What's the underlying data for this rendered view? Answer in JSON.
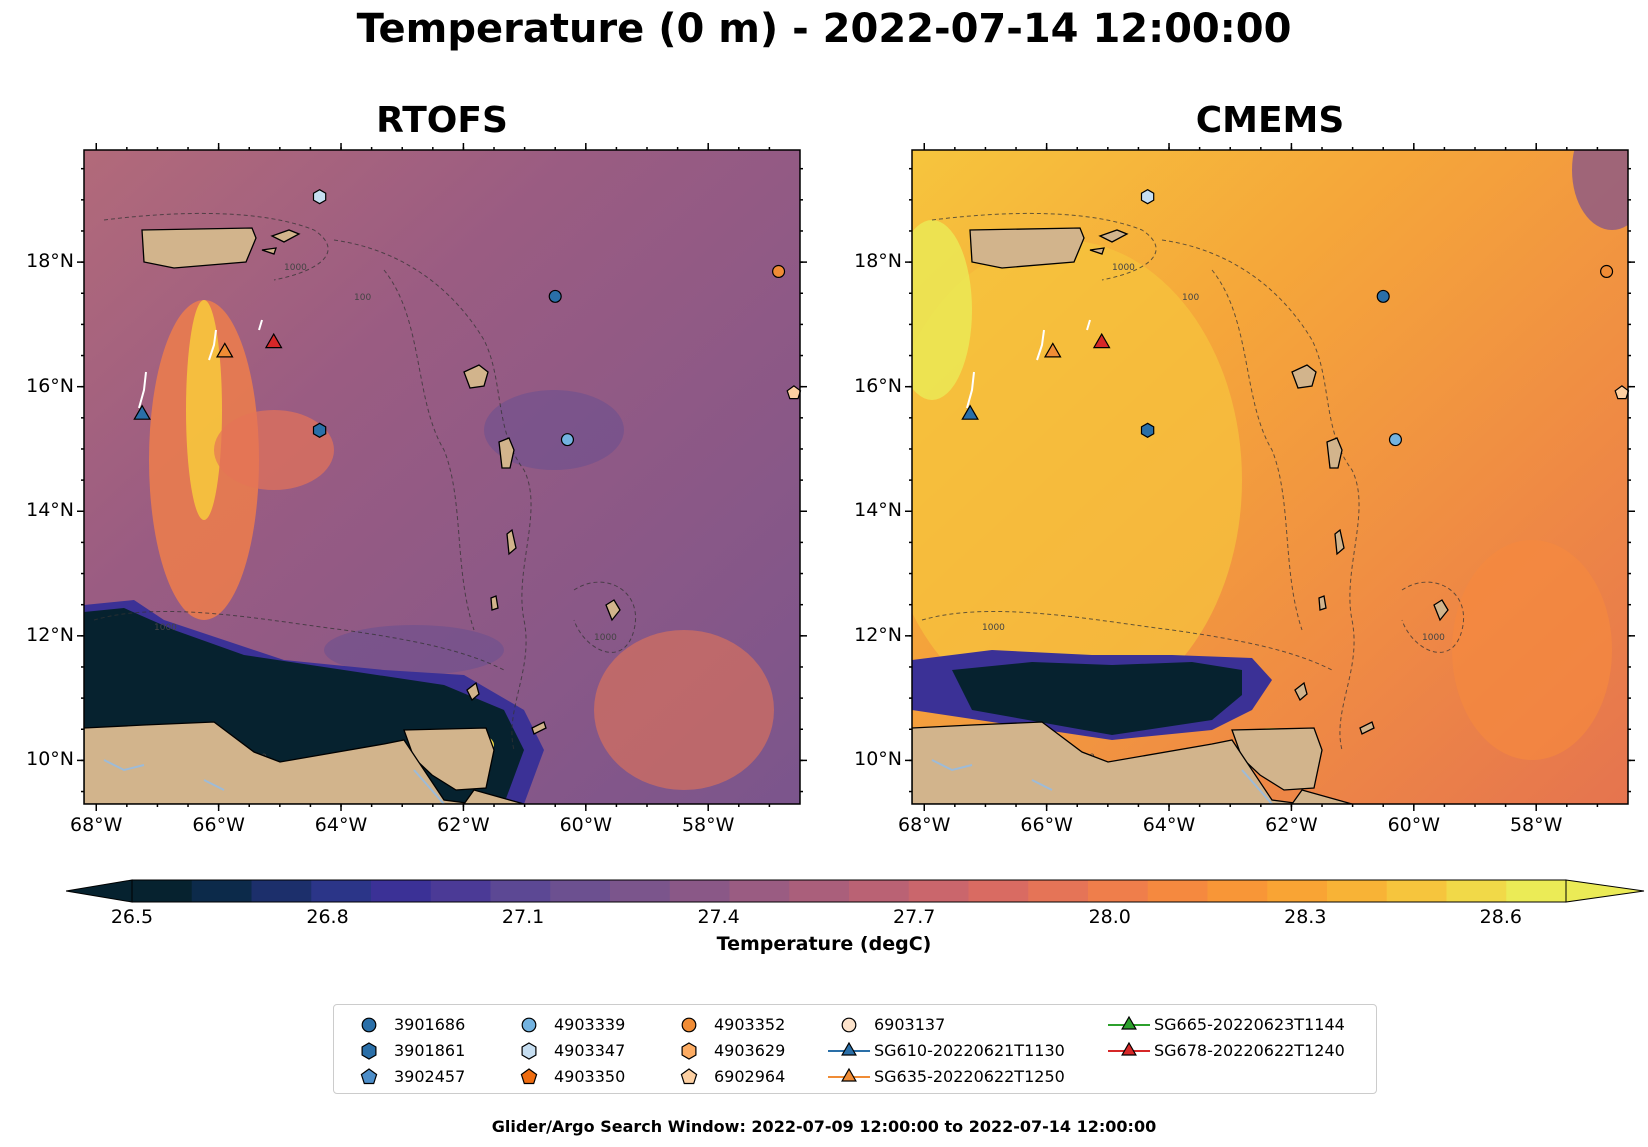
{
  "figure": {
    "suptitle": "Temperature (0 m) - 2022-07-14 12:00:00",
    "footer": "Glider/Argo Search Window: 2022-07-09 12:00:00 to 2022-07-14 12:00:00"
  },
  "panels": [
    {
      "title": "RTOFS",
      "scheme": "warm-purple"
    },
    {
      "title": "CMEMS",
      "scheme": "warm-orange"
    }
  ],
  "axes": {
    "lon_ticks": [
      "68°W",
      "66°W",
      "64°W",
      "62°W",
      "60°W",
      "58°W"
    ],
    "lat_ticks": [
      "18°N",
      "16°N",
      "14°N",
      "12°N",
      "10°N"
    ],
    "lon_range": [
      -68.2,
      -56.5
    ],
    "lat_range": [
      9.3,
      19.8
    ]
  },
  "contour_labels": [
    "1000",
    "100",
    "1000",
    "1000",
    "1000"
  ],
  "colorbar": {
    "label": "Temperature (degC)",
    "ticks": [
      "26.5",
      "26.8",
      "27.1",
      "27.4",
      "27.7",
      "28.0",
      "28.3",
      "28.6"
    ],
    "range": [
      26.5,
      28.7
    ],
    "colors": [
      "#06222f",
      "#0c2a4a",
      "#1c2f6b",
      "#2b3588",
      "#3b3196",
      "#4b3a96",
      "#5c4894",
      "#6c5090",
      "#7b558c",
      "#8a5887",
      "#9a5c82",
      "#aa5f7b",
      "#ba6274",
      "#ca666c",
      "#d96b62",
      "#e57457",
      "#ef7e4b",
      "#f5893f",
      "#f89637",
      "#f9a434",
      "#f8b336",
      "#f6c53d",
      "#f1d948",
      "#ebeb56"
    ]
  },
  "markers": [
    {
      "id": "3901686",
      "lon": -60.5,
      "lat": 17.45,
      "shape": "circle",
      "color": "#2a6fa8"
    },
    {
      "id": "3901861",
      "lon": -64.35,
      "lat": 15.3,
      "shape": "hexagon",
      "color": "#2a6fa8"
    },
    {
      "id": "4903339",
      "lon": -60.3,
      "lat": 15.15,
      "shape": "circle",
      "color": "#73b3e0"
    },
    {
      "id": "4903347",
      "lon": -64.35,
      "lat": 19.05,
      "shape": "hexagon",
      "color": "#c6def1"
    },
    {
      "id": "4903352",
      "lon": -56.85,
      "lat": 17.85,
      "shape": "circle",
      "color": "#f08c35"
    },
    {
      "id": "6902964",
      "lon": -56.6,
      "lat": 15.9,
      "shape": "pentagon",
      "color": "#fdd0a2"
    }
  ],
  "gliders": [
    {
      "id": "SG610-20220621T1130",
      "lon": -67.25,
      "lat": 15.55,
      "color": "#2a6fa8"
    },
    {
      "id": "SG635-20220622T1250",
      "lon": -65.9,
      "lat": 16.55,
      "color": "#f08c35"
    },
    {
      "id": "SG678-20220622T1240",
      "lon": -65.1,
      "lat": 16.7,
      "color": "#d62728"
    }
  ],
  "legend": [
    {
      "label": "3901686",
      "shape": "circle",
      "color": "#2a6fa8",
      "line": false
    },
    {
      "label": "3901861",
      "shape": "hexagon",
      "color": "#2a6fa8",
      "line": false
    },
    {
      "label": "3902457",
      "shape": "pentagon",
      "color": "#4d8ec9",
      "line": false
    },
    {
      "label": "4903339",
      "shape": "circle",
      "color": "#73b3e0",
      "line": false
    },
    {
      "label": "4903347",
      "shape": "hexagon",
      "color": "#c6def1",
      "line": false
    },
    {
      "label": "4903350",
      "shape": "pentagon",
      "color": "#ee6c10",
      "line": false
    },
    {
      "label": "4903352",
      "shape": "circle",
      "color": "#f08c35",
      "line": false
    },
    {
      "label": "4903629",
      "shape": "hexagon",
      "color": "#fdac63",
      "line": false
    },
    {
      "label": "6902964",
      "shape": "pentagon",
      "color": "#fdd0a2",
      "line": false
    },
    {
      "label": "6903137",
      "shape": "circle",
      "color": "#fde3cb",
      "line": false
    },
    {
      "label": "SG610-20220621T1130",
      "shape": "triangle",
      "color": "#2a6fa8",
      "line": true
    },
    {
      "label": "SG635-20220622T1250",
      "shape": "triangle",
      "color": "#f08c35",
      "line": true
    },
    {
      "label": "SG665-20220623T1144",
      "shape": "triangle",
      "color": "#2ca02c",
      "line": true
    },
    {
      "label": "SG678-20220622T1240",
      "shape": "triangle",
      "color": "#d62728",
      "line": true
    }
  ]
}
